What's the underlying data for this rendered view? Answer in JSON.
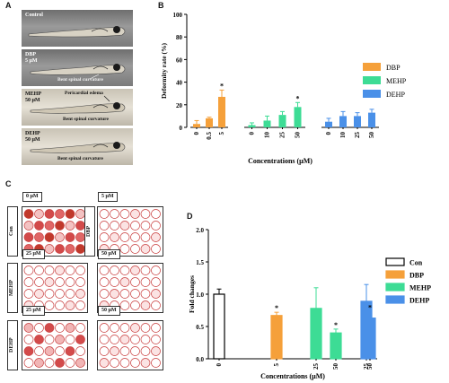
{
  "panels": {
    "a": "A",
    "b": "B",
    "c": "C",
    "d": "D"
  },
  "panelA": {
    "fish": [
      {
        "label": "Control",
        "sub": ""
      },
      {
        "label": "DBP",
        "sub": "5 μM",
        "note": "Bent spinal curvature"
      },
      {
        "label": "MEHP",
        "sub": "50 μM",
        "note": "Bent spinal curvature",
        "note2": "Pericardial edema"
      },
      {
        "label": "DEHP",
        "sub": "50 μM",
        "note": "Bent spinal curvature"
      }
    ]
  },
  "panelC": {
    "plates": [
      {
        "conc": "0 μM",
        "group": "Con",
        "intensity": "high"
      },
      {
        "conc": "5 μM",
        "group": "DBP",
        "intensity": "low"
      },
      {
        "conc": "25 μM",
        "group": "MEHP",
        "intensity": "low"
      },
      {
        "conc": "50 μM",
        "group": "",
        "intensity": "low"
      },
      {
        "conc": "25 μM",
        "group": "DEHP",
        "intensity": "mid"
      },
      {
        "conc": "50 μM",
        "group": "",
        "intensity": "low"
      }
    ]
  },
  "chart_data": [
    {
      "type": "bar",
      "title": "",
      "ylabel": "Deformity rate (%)",
      "xlabel": "Concentrations (μM)",
      "ylim": [
        0,
        100
      ],
      "yticks": [
        "0",
        "20",
        "40",
        "60",
        "80",
        "100"
      ],
      "groups": [
        {
          "name": "DBP",
          "color": "#f5a03a",
          "categories": [
            "0",
            "0.5",
            "5"
          ],
          "values": [
            3,
            8,
            27
          ],
          "errors": [
            3,
            1,
            6
          ],
          "sig": [
            "",
            "",
            "*"
          ]
        },
        {
          "name": "MEHP",
          "color": "#3ddc95",
          "categories": [
            "0",
            "10",
            "25",
            "50"
          ],
          "values": [
            2,
            6,
            11,
            18
          ],
          "errors": [
            2,
            4,
            3,
            4
          ],
          "sig": [
            "",
            "",
            "",
            "*"
          ]
        },
        {
          "name": "DEHP",
          "color": "#4a90e8",
          "categories": [
            "0",
            "10",
            "25",
            "50"
          ],
          "values": [
            5,
            10,
            10,
            13
          ],
          "errors": [
            3,
            4,
            3,
            3
          ],
          "sig": [
            "",
            "",
            "",
            ""
          ]
        }
      ],
      "legend": [
        "DBP",
        "MEHP",
        "DEHP"
      ]
    },
    {
      "type": "bar",
      "title": "",
      "ylabel": "Fold changes",
      "xlabel": "Concentrations (μM)",
      "ylim": [
        0,
        2.0
      ],
      "yticks": [
        "0.0",
        "0.5",
        "1.0",
        "1.5",
        "2.0"
      ],
      "bars": [
        {
          "series": "Con",
          "category": "0",
          "value": 1.0,
          "error": 0.08,
          "sig": ""
        },
        {
          "series": "DBP",
          "category": "5",
          "value": 0.67,
          "error": 0.05,
          "sig": "*"
        },
        {
          "series": "MEHP",
          "category": "25",
          "value": 0.78,
          "error": 0.32,
          "sig": ""
        },
        {
          "series": "MEHP",
          "category": "50",
          "value": 0.4,
          "error": 0.06,
          "sig": "*"
        },
        {
          "series": "DEHP",
          "category": "25",
          "value": 0.89,
          "error": 0.26,
          "sig": ""
        },
        {
          "series": "DEHP",
          "category": "50",
          "value": 0.63,
          "error": 0.1,
          "sig": "*"
        }
      ],
      "legend": [
        {
          "name": "Con",
          "color": "#ffffff"
        },
        {
          "name": "DBP",
          "color": "#f5a03a"
        },
        {
          "name": "MEHP",
          "color": "#3ddc95"
        },
        {
          "name": "DEHP",
          "color": "#4a90e8"
        }
      ]
    }
  ]
}
